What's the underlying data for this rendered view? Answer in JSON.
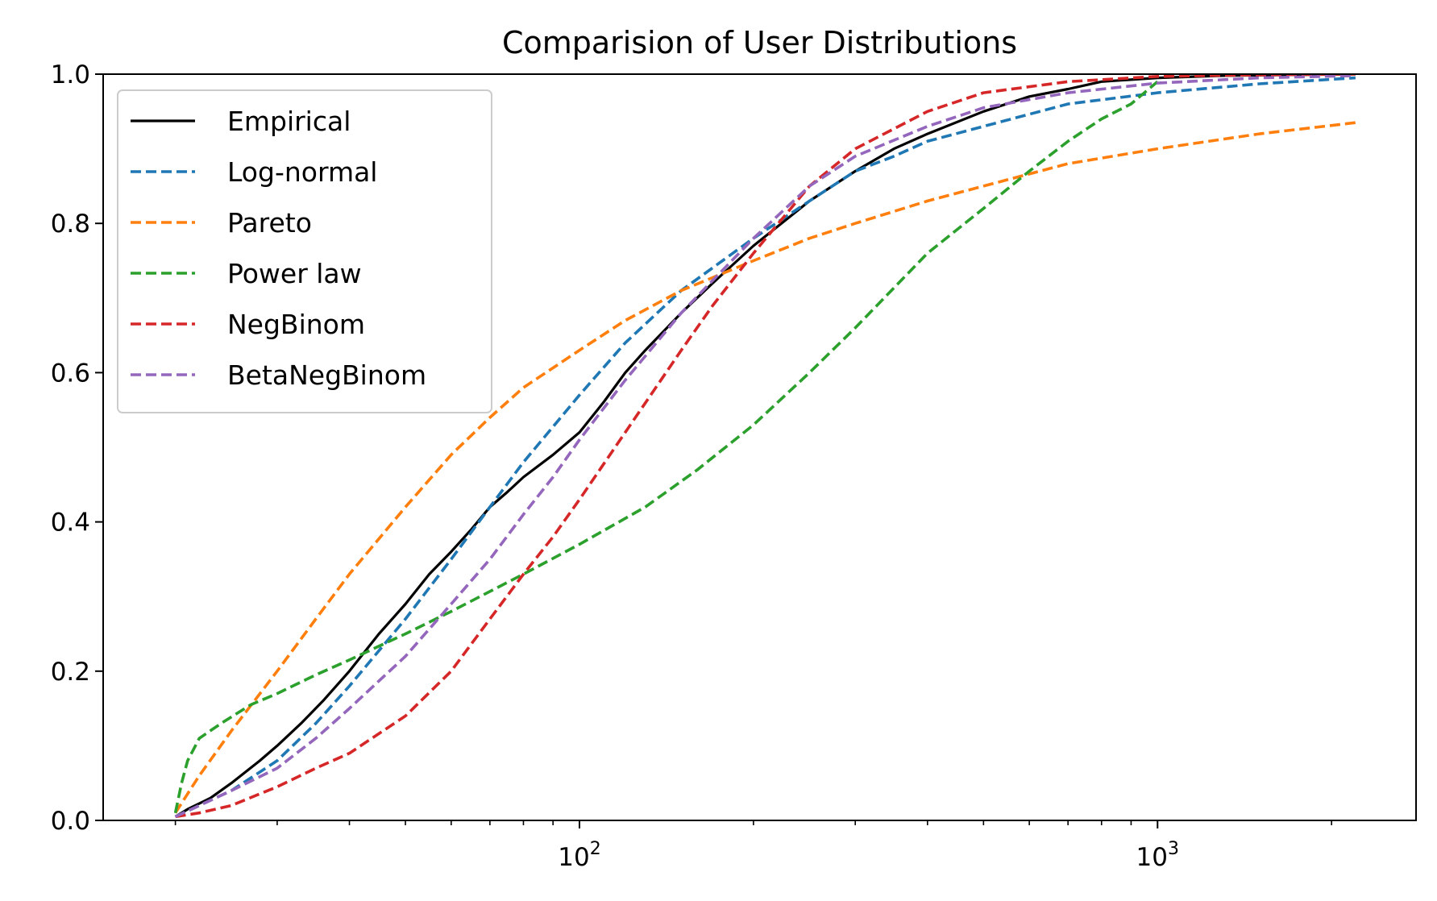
{
  "chart_data": {
    "type": "line",
    "title": "Comparision of User Distributions",
    "xlabel": "",
    "ylabel": "",
    "xscale": "log",
    "xlim": [
      15,
      2800
    ],
    "ylim": [
      0,
      1
    ],
    "grid": false,
    "legend_position": "top-left",
    "x_ticks": [
      {
        "value": 100,
        "base": "10",
        "exp": "2"
      },
      {
        "value": 1000,
        "base": "10",
        "exp": "3"
      }
    ],
    "y_ticks": [
      {
        "value": 0.0,
        "label": "0.0"
      },
      {
        "value": 0.2,
        "label": "0.2"
      },
      {
        "value": 0.4,
        "label": "0.4"
      },
      {
        "value": 0.6,
        "label": "0.6"
      },
      {
        "value": 0.8,
        "label": "0.8"
      },
      {
        "value": 1.0,
        "label": "1.0"
      }
    ],
    "series": [
      {
        "name": "Empirical",
        "color": "#000000",
        "style": "solid",
        "x": [
          20,
          21,
          23,
          25,
          28,
          30,
          33,
          36,
          40,
          45,
          50,
          55,
          60,
          65,
          70,
          75,
          80,
          90,
          100,
          110,
          120,
          130,
          150,
          170,
          200,
          250,
          300,
          350,
          400,
          500,
          600,
          700,
          800,
          1000,
          1300,
          1700,
          2200
        ],
        "y": [
          0.005,
          0.015,
          0.03,
          0.05,
          0.08,
          0.1,
          0.13,
          0.16,
          0.2,
          0.25,
          0.29,
          0.33,
          0.36,
          0.39,
          0.42,
          0.44,
          0.46,
          0.49,
          0.52,
          0.56,
          0.6,
          0.63,
          0.68,
          0.72,
          0.77,
          0.83,
          0.87,
          0.9,
          0.92,
          0.95,
          0.97,
          0.98,
          0.99,
          0.995,
          0.998,
          0.999,
          1.0
        ]
      },
      {
        "name": "Log-normal",
        "color": "#1f77b4",
        "style": "dashed",
        "x": [
          20,
          22,
          25,
          30,
          35,
          40,
          50,
          60,
          70,
          80,
          100,
          120,
          150,
          200,
          250,
          300,
          350,
          400,
          500,
          700,
          1000,
          1500,
          2200
        ],
        "y": [
          0.005,
          0.02,
          0.04,
          0.08,
          0.13,
          0.18,
          0.27,
          0.35,
          0.42,
          0.48,
          0.57,
          0.64,
          0.71,
          0.78,
          0.83,
          0.87,
          0.89,
          0.91,
          0.93,
          0.96,
          0.975,
          0.987,
          0.995
        ]
      },
      {
        "name": "Pareto",
        "color": "#ff7f0e",
        "style": "dashed",
        "x": [
          20,
          22,
          25,
          30,
          35,
          40,
          50,
          60,
          70,
          80,
          100,
          120,
          150,
          200,
          250,
          300,
          400,
          500,
          700,
          1000,
          1500,
          2200
        ],
        "y": [
          0.01,
          0.06,
          0.12,
          0.2,
          0.27,
          0.33,
          0.42,
          0.49,
          0.54,
          0.58,
          0.63,
          0.67,
          0.71,
          0.75,
          0.78,
          0.8,
          0.83,
          0.85,
          0.88,
          0.9,
          0.92,
          0.935
        ]
      },
      {
        "name": "Power law",
        "color": "#2ca02c",
        "style": "dashed",
        "x": [
          20,
          20.5,
          21,
          22,
          24,
          27,
          30,
          35,
          40,
          50,
          60,
          80,
          100,
          130,
          160,
          200,
          250,
          300,
          400,
          500,
          600,
          700,
          800,
          900,
          1000
        ],
        "y": [
          0.01,
          0.05,
          0.08,
          0.11,
          0.13,
          0.155,
          0.17,
          0.195,
          0.215,
          0.25,
          0.28,
          0.33,
          0.37,
          0.42,
          0.47,
          0.53,
          0.6,
          0.66,
          0.76,
          0.82,
          0.87,
          0.91,
          0.94,
          0.96,
          0.99
        ]
      },
      {
        "name": "NegBinom",
        "color": "#d62728",
        "style": "dashed",
        "x": [
          20,
          22,
          25,
          30,
          35,
          40,
          50,
          60,
          70,
          80,
          90,
          100,
          120,
          150,
          170,
          200,
          250,
          300,
          400,
          500,
          700,
          1000,
          1500,
          2200
        ],
        "y": [
          0.005,
          0.01,
          0.02,
          0.045,
          0.07,
          0.09,
          0.14,
          0.2,
          0.27,
          0.33,
          0.38,
          0.43,
          0.52,
          0.63,
          0.69,
          0.76,
          0.85,
          0.9,
          0.95,
          0.975,
          0.99,
          0.997,
          0.999,
          1.0
        ]
      },
      {
        "name": "BetaNegBinom",
        "color": "#9467bd",
        "style": "dashed",
        "x": [
          20,
          22,
          25,
          30,
          35,
          40,
          50,
          60,
          70,
          80,
          90,
          100,
          120,
          150,
          200,
          250,
          300,
          400,
          500,
          700,
          1000,
          1500,
          2200
        ],
        "y": [
          0.005,
          0.02,
          0.04,
          0.07,
          0.11,
          0.15,
          0.22,
          0.29,
          0.35,
          0.41,
          0.46,
          0.51,
          0.59,
          0.68,
          0.78,
          0.85,
          0.89,
          0.93,
          0.955,
          0.975,
          0.988,
          0.995,
          0.998
        ]
      }
    ]
  }
}
